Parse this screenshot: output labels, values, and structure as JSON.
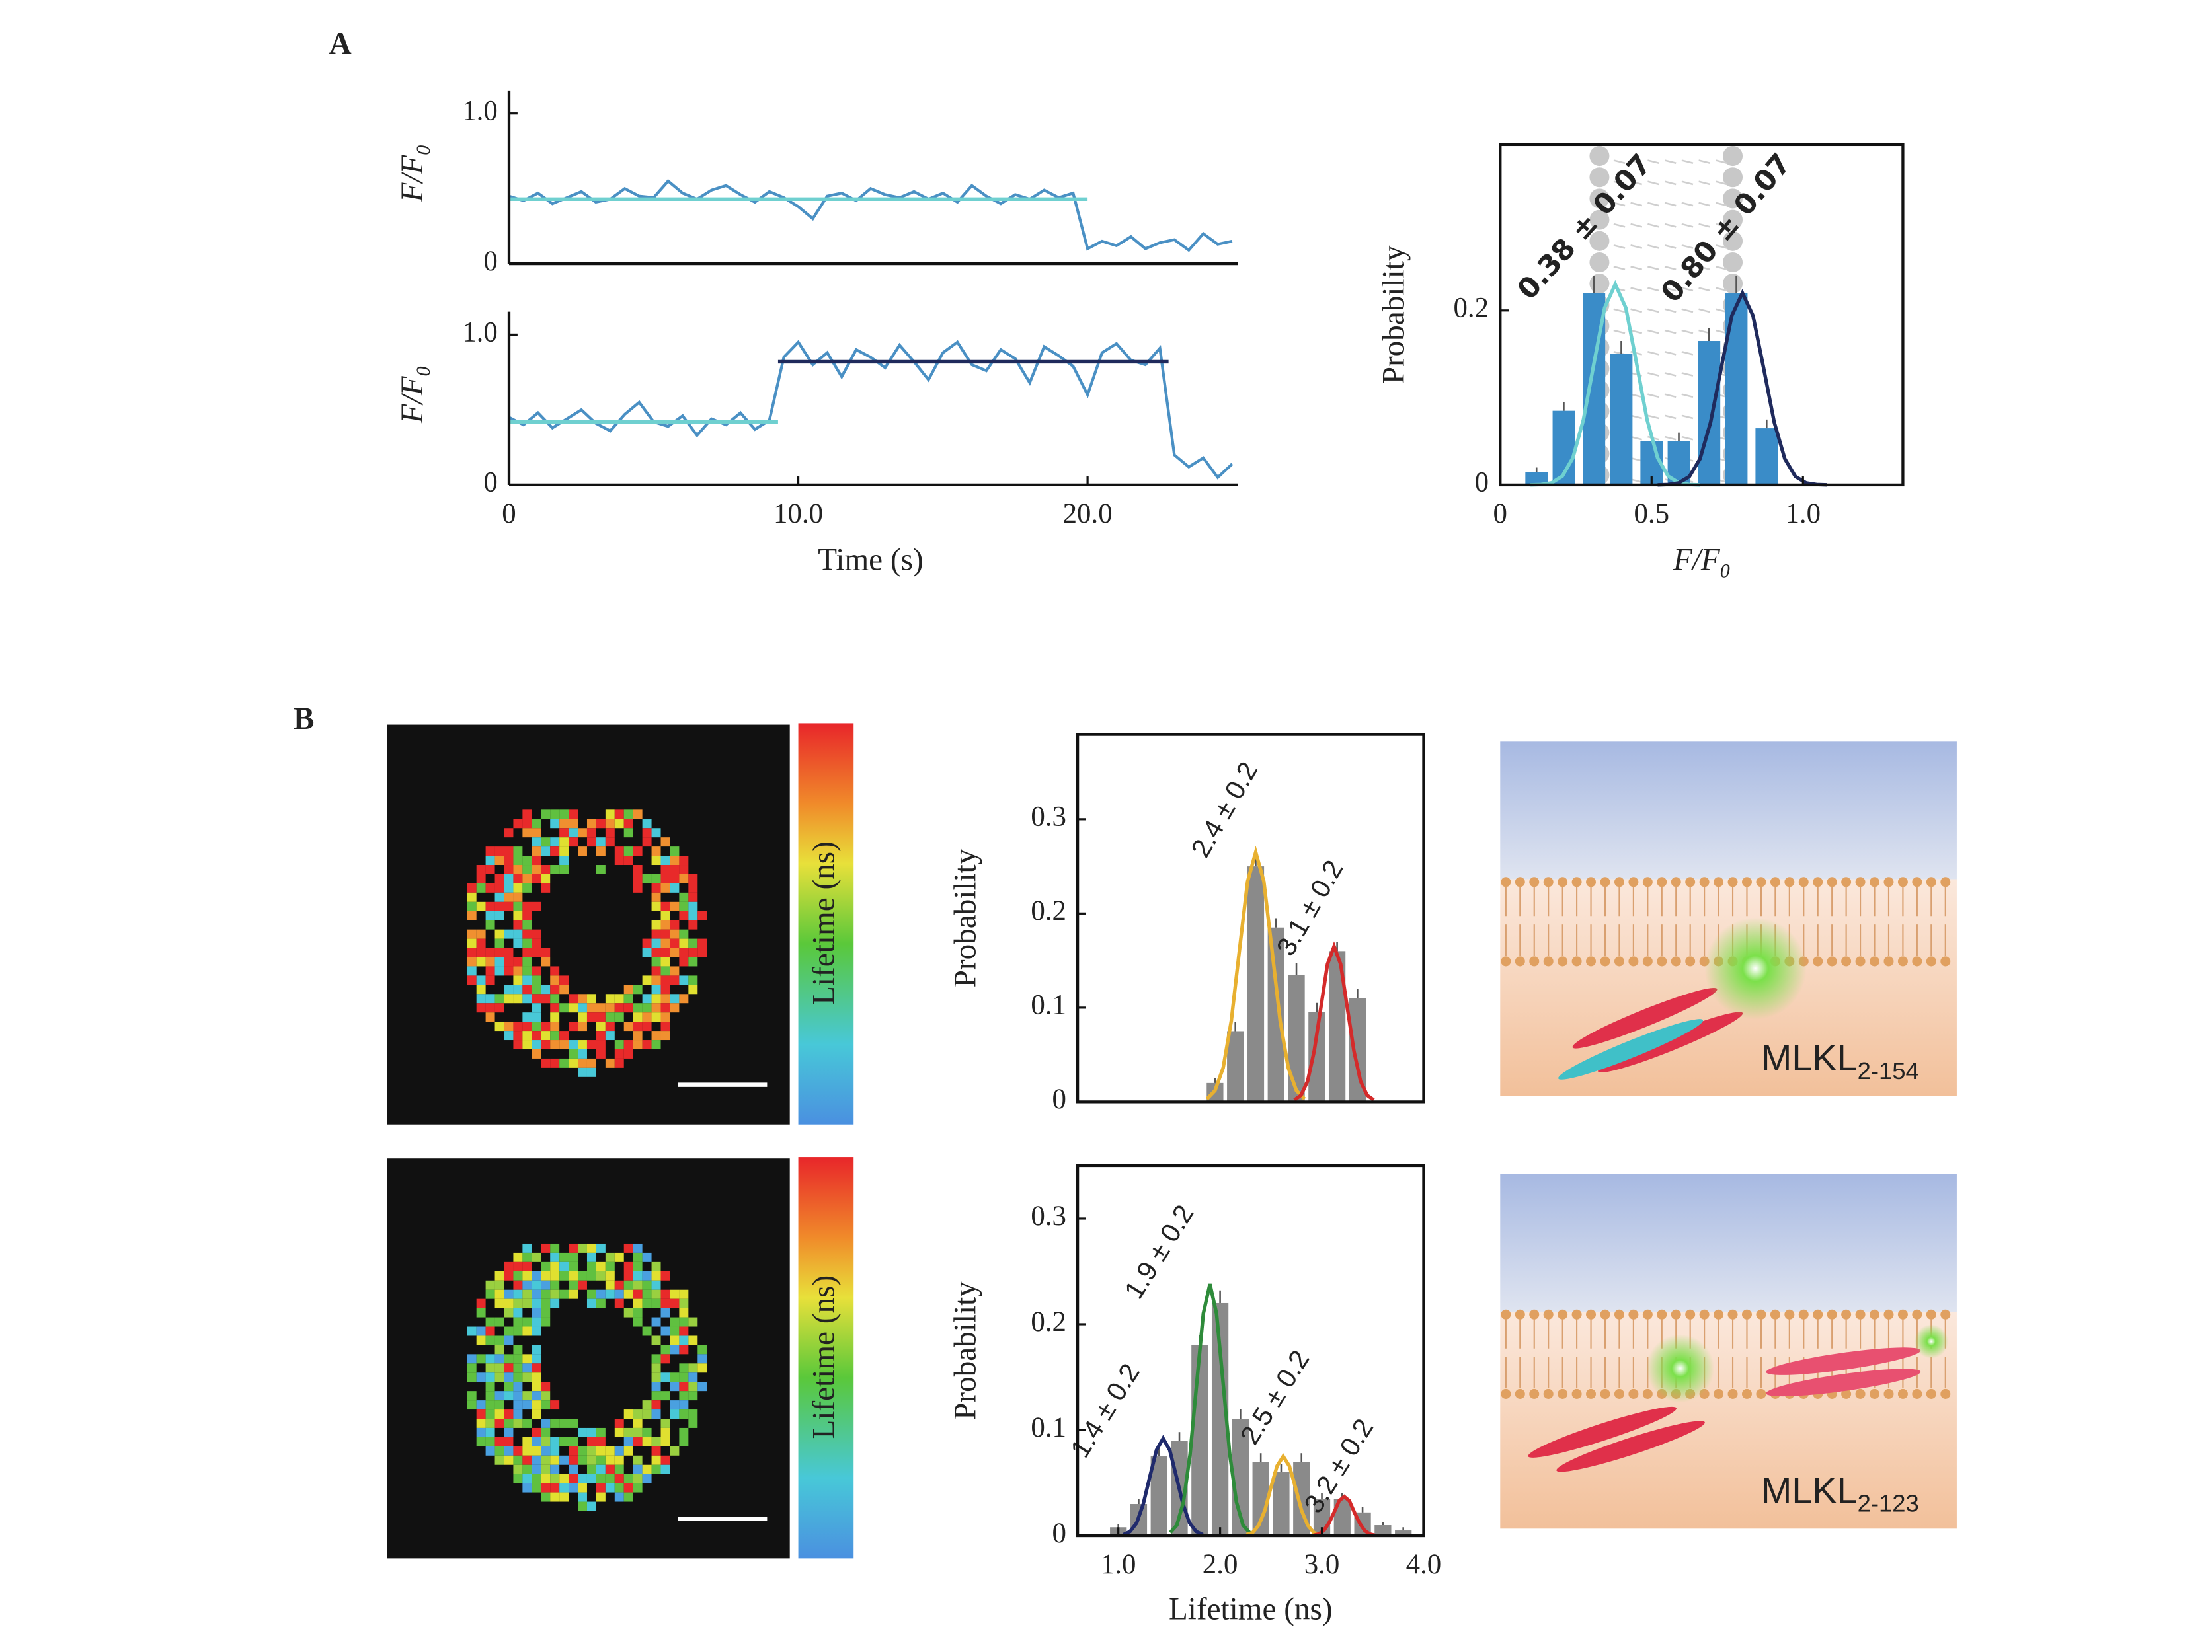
{
  "panel_labels": [
    "A",
    "B"
  ],
  "chart_data": [
    {
      "type": "line",
      "ylabel": "F/F",
      "ylabel_sub": "0",
      "xlim": [
        0,
        25
      ],
      "ylim": [
        0,
        1.2
      ],
      "yticks": [
        0,
        {
          "value": 1,
          "label": "1.0"
        }
      ],
      "series": [
        {
          "color": "#4a90c4",
          "x": [
            0,
            0.5,
            1,
            1.5,
            2,
            2.5,
            3,
            3.5,
            4,
            4.5,
            5,
            5.5,
            6,
            6.5,
            7,
            7.5,
            8,
            8.5,
            9,
            9.5,
            10,
            10.5,
            11,
            11.5,
            12,
            12.5,
            13,
            13.5,
            14,
            14.5,
            15,
            15.5,
            16,
            16.5,
            17,
            17.5,
            18,
            18.5,
            19,
            19.5,
            20,
            20.5,
            21,
            21.5,
            22,
            22.5,
            23,
            23.5,
            24,
            24.5,
            25
          ],
          "values": [
            0.45,
            0.42,
            0.47,
            0.4,
            0.44,
            0.48,
            0.41,
            0.43,
            0.5,
            0.45,
            0.44,
            0.55,
            0.47,
            0.43,
            0.49,
            0.52,
            0.46,
            0.41,
            0.48,
            0.44,
            0.38,
            0.3,
            0.45,
            0.47,
            0.42,
            0.5,
            0.46,
            0.44,
            0.48,
            0.43,
            0.47,
            0.41,
            0.52,
            0.45,
            0.4,
            0.46,
            0.43,
            0.49,
            0.44,
            0.47,
            0.1,
            0.15,
            0.12,
            0.18,
            0.1,
            0.14,
            0.16,
            0.09,
            0.2,
            0.13,
            0.15
          ]
        },
        {
          "color": "#6fd0d0",
          "x": [
            0,
            20
          ],
          "values": [
            0.43,
            0.43
          ]
        }
      ]
    },
    {
      "type": "line",
      "ylabel": "F/F",
      "ylabel_sub": "0",
      "xlabel": "Time (s)",
      "xlim": [
        0,
        25
      ],
      "ylim": [
        0,
        1.2
      ],
      "yticks": [
        0,
        {
          "value": 1,
          "label": "1.0"
        }
      ],
      "xticks": [
        0,
        {
          "value": 10,
          "label": "10.0"
        },
        {
          "value": 20,
          "label": "20.0"
        }
      ],
      "series": [
        {
          "color": "#4a90c4",
          "x": [
            0,
            0.5,
            1,
            1.5,
            2,
            2.5,
            3,
            3.5,
            4,
            4.5,
            5,
            5.5,
            6,
            6.5,
            7,
            7.5,
            8,
            8.5,
            9,
            9.5,
            10,
            10.5,
            11,
            11.5,
            12,
            12.5,
            13,
            13.5,
            14,
            14.5,
            15,
            15.5,
            16,
            16.5,
            17,
            17.5,
            18,
            18.5,
            19,
            19.5,
            20,
            20.5,
            21,
            21.5,
            22,
            22.5,
            23,
            23.5,
            24,
            24.5,
            25
          ],
          "values": [
            0.45,
            0.4,
            0.48,
            0.38,
            0.44,
            0.5,
            0.41,
            0.36,
            0.47,
            0.55,
            0.42,
            0.39,
            0.46,
            0.33,
            0.44,
            0.4,
            0.48,
            0.37,
            0.43,
            0.85,
            0.95,
            0.8,
            0.88,
            0.72,
            0.9,
            0.85,
            0.78,
            0.93,
            0.82,
            0.7,
            0.88,
            0.95,
            0.8,
            0.76,
            0.9,
            0.84,
            0.68,
            0.92,
            0.86,
            0.79,
            0.6,
            0.88,
            0.94,
            0.83,
            0.8,
            0.91,
            0.2,
            0.12,
            0.18,
            0.05,
            0.14
          ]
        },
        {
          "color": "#6fd0d0",
          "x": [
            0,
            9.3
          ],
          "values": [
            0.42,
            0.42
          ]
        },
        {
          "color": "#1f2a5c",
          "x": [
            9.3,
            22.8
          ],
          "values": [
            0.82,
            0.82
          ]
        }
      ]
    },
    {
      "type": "bar",
      "ylabel": "Probability",
      "xlabel": "F/F",
      "xlabel_sub": "0",
      "color": "#3a8cc8",
      "xlim": [
        0,
        1.33
      ],
      "ylim": [
        0,
        0.39
      ],
      "xticks": [
        0,
        0.5,
        {
          "value": 1,
          "label": "1.0"
        }
      ],
      "yticks": [
        0,
        0.2
      ],
      "x": [
        0.12,
        0.21,
        0.31,
        0.4,
        0.5,
        0.59,
        0.69,
        0.78,
        0.88
      ],
      "values": [
        0.015,
        0.085,
        0.22,
        0.15,
        0.05,
        0.05,
        0.165,
        0.22,
        0.065
      ],
      "errors": [
        0.005,
        0.01,
        0.02,
        0.015,
        0.01,
        0.01,
        0.015,
        0.02,
        0.01
      ],
      "fits": [
        {
          "label": "0.38 ± 0.07",
          "color": "#6fd0d0",
          "label_color": "#4a90c4",
          "x": [
            0.1,
            0.135,
            0.17,
            0.205,
            0.24,
            0.275,
            0.31,
            0.345,
            0.38,
            0.415,
            0.45,
            0.485,
            0.52,
            0.555,
            0.59,
            0.625,
            0.66
          ],
          "values": [
            0.0001,
            0.0005,
            0.0025,
            0.01,
            0.031,
            0.075,
            0.14,
            0.203,
            0.23,
            0.203,
            0.14,
            0.075,
            0.031,
            0.01,
            0.0025,
            0.0005,
            0.0001
          ]
        },
        {
          "label": "0.80 ± 0.07",
          "color": "#1f2a5c",
          "label_color": "#1f2a5c",
          "x": [
            0.52,
            0.555,
            0.59,
            0.625,
            0.66,
            0.695,
            0.73,
            0.765,
            0.8,
            0.835,
            0.87,
            0.905,
            0.94,
            0.975,
            1.01,
            1.045,
            1.08
          ],
          "values": [
            0.0001,
            0.0005,
            0.0024,
            0.0097,
            0.03,
            0.072,
            0.134,
            0.194,
            0.22,
            0.194,
            0.134,
            0.072,
            0.03,
            0.0097,
            0.0024,
            0.0005,
            0.0001
          ]
        }
      ]
    },
    {
      "type": "bar",
      "ylabel": "Probability",
      "color": "#8a8a8a",
      "xlim": [
        0.6,
        4.0
      ],
      "ylim": [
        0,
        0.39
      ],
      "yticks": [
        0,
        0.1,
        0.2,
        0.3
      ],
      "x": [
        1.95,
        2.15,
        2.35,
        2.55,
        2.75,
        2.95,
        3.15,
        3.35
      ],
      "values": [
        0.02,
        0.075,
        0.25,
        0.185,
        0.135,
        0.095,
        0.16,
        0.11
      ],
      "errors": [
        0.005,
        0.01,
        0.012,
        0.01,
        0.012,
        0.01,
        0.01,
        0.01
      ],
      "fits": [
        {
          "label": "2.4 ± 0.2",
          "color": "#e8b030",
          "label_color": "#6b6b20",
          "x": [
            1.87,
            1.95,
            2.03,
            2.11,
            2.19,
            2.27,
            2.35,
            2.43,
            2.51,
            2.59,
            2.67,
            2.75,
            2.83
          ],
          "values": [
            0.003,
            0.012,
            0.036,
            0.086,
            0.161,
            0.234,
            0.265,
            0.234,
            0.161,
            0.086,
            0.036,
            0.012,
            0.003
          ]
        },
        {
          "label": "3.1 ± 0.2",
          "color": "#d42a2a",
          "label_color": "#c0282d",
          "x": [
            2.73,
            2.795,
            2.86,
            2.925,
            2.99,
            3.055,
            3.12,
            3.185,
            3.25,
            3.315,
            3.38,
            3.445,
            3.51
          ],
          "values": [
            0.002,
            0.007,
            0.022,
            0.054,
            0.1,
            0.146,
            0.165,
            0.146,
            0.1,
            0.054,
            0.022,
            0.007,
            0.002
          ]
        }
      ]
    },
    {
      "type": "bar",
      "ylabel": "Probability",
      "xlabel": "Lifetime (ns)",
      "color": "#8a8a8a",
      "xlim": [
        0.6,
        4.0
      ],
      "ylim": [
        0,
        0.35
      ],
      "yticks": [
        0,
        0.1,
        0.2,
        0.3
      ],
      "xticks": [
        {
          "value": 1,
          "label": "1.0"
        },
        {
          "value": 2,
          "label": "2.0"
        },
        {
          "value": 3,
          "label": "3.0"
        },
        {
          "value": 4,
          "label": "4.0"
        }
      ],
      "x": [
        1.0,
        1.2,
        1.4,
        1.6,
        1.8,
        2.0,
        2.2,
        2.4,
        2.6,
        2.8,
        3.0,
        3.2,
        3.4,
        3.6,
        3.8
      ],
      "values": [
        0.008,
        0.03,
        0.075,
        0.09,
        0.18,
        0.22,
        0.11,
        0.07,
        0.06,
        0.07,
        0.035,
        0.035,
        0.022,
        0.01,
        0.005
      ],
      "errors": [
        0.003,
        0.005,
        0.008,
        0.008,
        0.01,
        0.012,
        0.01,
        0.008,
        0.008,
        0.008,
        0.005,
        0.005,
        0.005,
        0.003,
        0.003
      ],
      "fits": [
        {
          "label": "1.4 ± 0.2",
          "color": "#1f2a6c",
          "label_color": "#2a3580",
          "x": [
            1.05,
            1.115,
            1.18,
            1.245,
            1.31,
            1.375,
            1.44,
            1.505,
            1.57,
            1.635,
            1.7,
            1.765,
            1.83
          ],
          "values": [
            0.001,
            0.004,
            0.012,
            0.03,
            0.056,
            0.081,
            0.092,
            0.081,
            0.056,
            0.03,
            0.012,
            0.004,
            0.001
          ]
        },
        {
          "label": "1.9 ± 0.2",
          "color": "#2e8b3a",
          "label_color": "#2e7d32",
          "x": [
            1.51,
            1.575,
            1.64,
            1.705,
            1.77,
            1.835,
            1.9,
            1.965,
            2.03,
            2.095,
            2.16,
            2.225,
            2.29
          ],
          "values": [
            0.003,
            0.01,
            0.032,
            0.077,
            0.144,
            0.21,
            0.238,
            0.21,
            0.144,
            0.077,
            0.032,
            0.01,
            0.003
          ]
        },
        {
          "label": "2.5 ± 0.2",
          "color": "#e8b030",
          "label_color": "#7a6a20",
          "x": [
            2.26,
            2.32,
            2.38,
            2.44,
            2.5,
            2.56,
            2.62,
            2.68,
            2.74,
            2.8,
            2.86,
            2.92,
            2.98
          ],
          "values": [
            0.001,
            0.003,
            0.01,
            0.024,
            0.046,
            0.066,
            0.075,
            0.066,
            0.046,
            0.024,
            0.01,
            0.003,
            0.001
          ]
        },
        {
          "label": "3.2 ± 0.2",
          "color": "#d42a2a",
          "label_color": "#c0282d",
          "x": [
            2.92,
            2.97,
            3.02,
            3.07,
            3.12,
            3.17,
            3.22,
            3.27,
            3.32,
            3.37,
            3.42,
            3.47,
            3.52
          ],
          "values": [
            0.0004,
            0.0016,
            0.005,
            0.012,
            0.022,
            0.033,
            0.037,
            0.033,
            0.022,
            0.012,
            0.005,
            0.0016,
            0.0004
          ]
        }
      ]
    }
  ],
  "images": [
    {
      "colorbar_label": "Lifetime (ns)"
    },
    {
      "colorbar_label": "Lifetime (ns)"
    }
  ],
  "diagrams": [
    {
      "label": "MLKL",
      "label_sub": "2-154"
    },
    {
      "label": "MLKL",
      "label_sub": "2-123"
    }
  ]
}
